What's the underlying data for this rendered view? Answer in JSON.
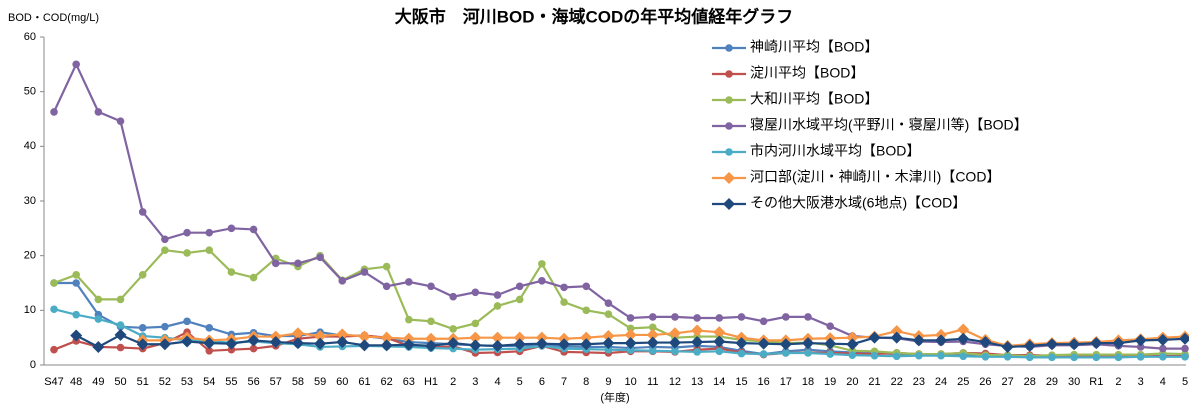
{
  "chart_data": {
    "type": "line",
    "title": "大阪市　河川BOD・海域CODの年平均値経年グラフ",
    "y_label": "BOD・COD(mg/L)",
    "x_label": "(年度)",
    "categories": [
      "S47",
      "48",
      "49",
      "50",
      "51",
      "52",
      "53",
      "54",
      "55",
      "56",
      "57",
      "58",
      "59",
      "60",
      "61",
      "62",
      "63",
      "H1",
      "2",
      "3",
      "4",
      "5",
      "6",
      "7",
      "8",
      "9",
      "10",
      "11",
      "12",
      "13",
      "14",
      "15",
      "16",
      "17",
      "18",
      "19",
      "20",
      "21",
      "22",
      "23",
      "24",
      "25",
      "26",
      "27",
      "28",
      "29",
      "30",
      "R1",
      "2",
      "3",
      "4",
      "5"
    ],
    "ylim": [
      0,
      60
    ],
    "yticks": [
      0,
      10,
      20,
      30,
      40,
      50,
      60
    ],
    "grid": false,
    "legend": "upper right",
    "series": [
      {
        "name": "神崎川平均【BOD】",
        "color": "#4f81bd",
        "marker": "circle",
        "values": [
          15,
          15,
          9.2,
          7,
          6.8,
          7,
          8,
          6.8,
          5.6,
          5.9,
          5.3,
          5.3,
          6,
          5.4,
          5.3,
          4.8,
          4.2,
          4,
          3.8,
          3.6,
          3.5,
          3.5,
          3.7,
          3.4,
          3.3,
          3.3,
          3.1,
          3.3,
          3.2,
          3.5,
          3.3,
          2.6,
          2.0,
          2.5,
          2.8,
          2.5,
          2.3,
          2.2,
          2,
          1.9,
          1.8,
          1.9,
          1.7,
          1.6,
          1.6,
          1.7,
          1.7,
          1.7,
          1.5,
          1.5,
          1.7,
          1.6
        ]
      },
      {
        "name": "淀川平均【BOD】",
        "color": "#c0504d",
        "marker": "circle",
        "values": [
          2.8,
          4.4,
          3.3,
          3.2,
          3,
          4,
          6,
          2.6,
          2.8,
          3,
          3.5,
          4.8,
          5.2,
          5.2,
          5.4,
          5,
          3.5,
          3.2,
          3.4,
          2.2,
          2.3,
          2.5,
          3.5,
          2.4,
          2.3,
          2.2,
          2.5,
          2.5,
          2.4,
          2.8,
          3,
          2.3,
          1.9,
          2.2,
          2.3,
          2.2,
          2.1,
          2,
          2.2,
          2,
          2,
          2.2,
          2.1,
          1.8,
          1.8,
          1.7,
          1.7,
          1.7,
          1.6,
          1.6,
          1.6,
          1.6
        ]
      },
      {
        "name": "大和川平均【BOD】",
        "color": "#9bbb59",
        "marker": "circle",
        "values": [
          15,
          16.5,
          12,
          12,
          16.5,
          21,
          20.5,
          21,
          17,
          16,
          19.5,
          18,
          20,
          15.5,
          17.5,
          18,
          8.3,
          8,
          6.6,
          7.6,
          10.8,
          12,
          18.5,
          11.5,
          10,
          9.3,
          6.7,
          6.9,
          5,
          5.2,
          5.2,
          4.6,
          4.3,
          4,
          4.1,
          3.6,
          2.6,
          2.5,
          2.2,
          2,
          2,
          2.2,
          1.8,
          1.8,
          1.6,
          1.8,
          1.9,
          1.9,
          1.9,
          1.9,
          2.1,
          2
        ]
      },
      {
        "name": "寝屋川水域平均(平野川・寝屋川等)【BOD】",
        "color": "#8064a2",
        "marker": "circle",
        "values": [
          46.3,
          55,
          46.3,
          44.6,
          28,
          23,
          24.2,
          24.2,
          25,
          24.8,
          18.6,
          18.6,
          19.7,
          15.4,
          17,
          14.4,
          15.2,
          14.4,
          12.5,
          13.3,
          12.8,
          14.4,
          15.4,
          14.2,
          14.4,
          11.3,
          8.6,
          8.8,
          8.8,
          8.6,
          8.6,
          8.8,
          8,
          8.8,
          8.8,
          7.1,
          5.3,
          5,
          4.9,
          4.3,
          4.2,
          4.3,
          3.8,
          3.5,
          3.3,
          3.6,
          3.6,
          3.8,
          3.5,
          3.3,
          3,
          3
        ]
      },
      {
        "name": "市内河川水域平均【BOD】",
        "color": "#4bacc6",
        "marker": "circle",
        "values": [
          10.2,
          9.2,
          8.4,
          7.3,
          5.3,
          5,
          4.5,
          4.3,
          4.1,
          4.3,
          4,
          3.8,
          3.3,
          3.4,
          3.5,
          3.4,
          3.3,
          3.1,
          3,
          2.8,
          2.9,
          3,
          3.5,
          3,
          2.9,
          2.8,
          2.7,
          2.6,
          2.5,
          2.4,
          2.5,
          2.1,
          2,
          2.2,
          2.2,
          2,
          1.8,
          1.7,
          1.6,
          1.7,
          1.7,
          1.6,
          1.5,
          1.5,
          1.4,
          1.4,
          1.4,
          1.4,
          1.4,
          1.5,
          1.5,
          1.5
        ]
      },
      {
        "name": "河口部(淀川・神崎川・木津川)【COD】",
        "color": "#f79646",
        "marker": "diamond",
        "values": [
          null,
          null,
          null,
          null,
          4.5,
          4.5,
          5.0,
          4.5,
          4.7,
          5.2,
          5.2,
          5.8,
          5.3,
          5.6,
          5.2,
          5.0,
          4.8,
          4.8,
          4.8,
          5.0,
          5.0,
          5.0,
          5.0,
          4.8,
          5.0,
          5.3,
          5.5,
          5.5,
          5.8,
          6.3,
          6.0,
          5.0,
          4.5,
          4.5,
          4.8,
          4.9,
          5.0,
          5.2,
          6.2,
          5.3,
          5.5,
          6.5,
          4.6,
          3.5,
          3.8,
          4.0,
          4.1,
          4.2,
          4.5,
          4.7,
          5.0,
          5.2
        ]
      },
      {
        "name": "その他大阪港水域(6地点)【COD】",
        "color": "#1f497d",
        "marker": "diamond",
        "values": [
          null,
          5.4,
          3.3,
          5.5,
          3.8,
          3.8,
          4.3,
          4.0,
          3.9,
          4.5,
          4.2,
          4.0,
          3.9,
          4.2,
          3.6,
          3.6,
          3.7,
          3.5,
          4.0,
          3.6,
          3.5,
          3.8,
          3.9,
          3.8,
          3.8,
          4.0,
          4.0,
          4.1,
          4.1,
          4.2,
          4.3,
          4.0,
          3.9,
          3.8,
          4.0,
          3.9,
          3.8,
          5.0,
          5.0,
          4.5,
          4.5,
          4.8,
          4.2,
          3.3,
          3.5,
          3.8,
          3.8,
          4.0,
          4.0,
          4.5,
          4.6,
          4.8
        ]
      }
    ]
  }
}
